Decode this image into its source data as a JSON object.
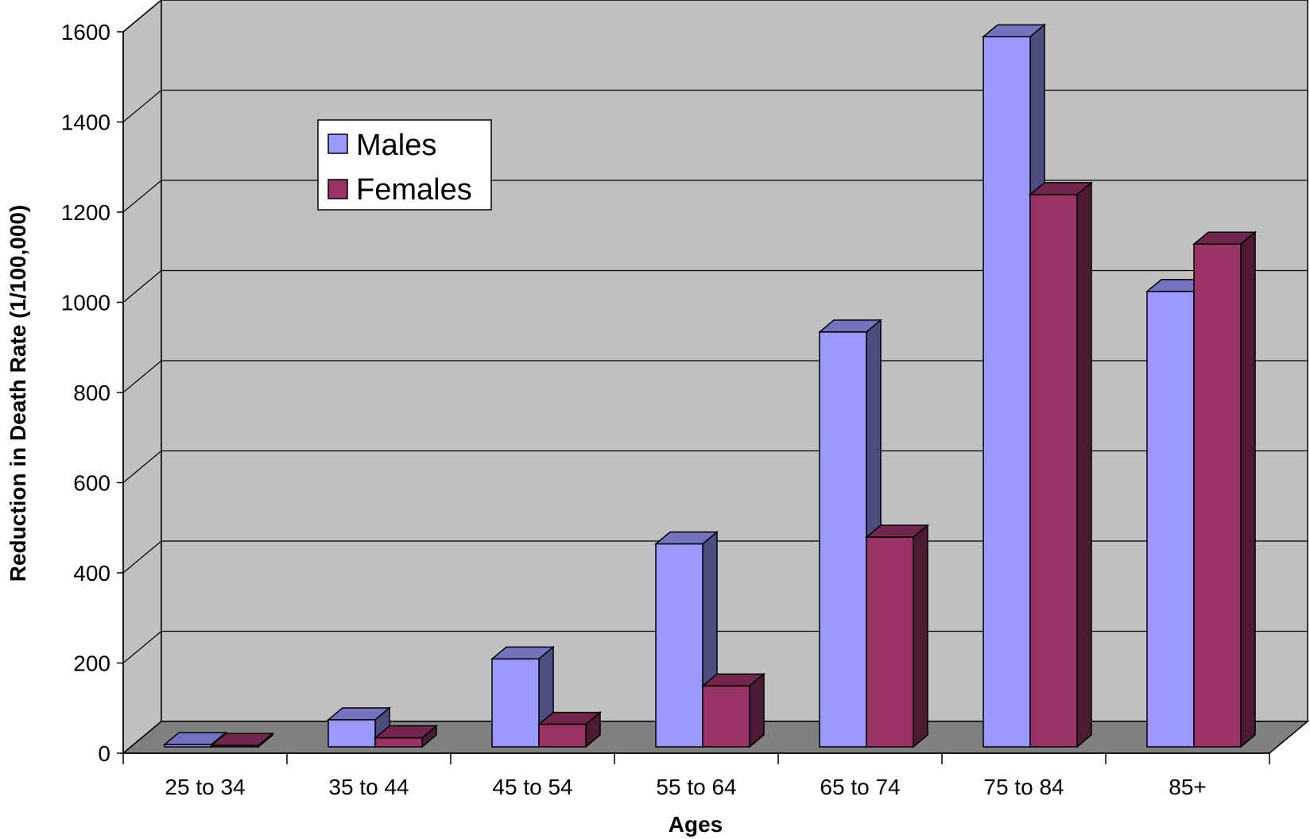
{
  "chart_data": {
    "type": "bar",
    "title": "",
    "xlabel": "Ages",
    "ylabel": "Reduction in Death Rate (1/100,000)",
    "categories": [
      "25 to 34",
      "35 to 44",
      "45 to 54",
      "55 to 64",
      "65 to 74",
      "75 to 84",
      "85+"
    ],
    "series": [
      {
        "name": "Males",
        "values": [
          5,
          60,
          195,
          450,
          920,
          1575,
          1010
        ],
        "color": "#9999ff"
      },
      {
        "name": "Females",
        "values": [
          3,
          20,
          50,
          135,
          465,
          1225,
          1115
        ],
        "color": "#993366"
      }
    ],
    "ylim": [
      0,
      1600
    ],
    "yticks": [
      0,
      200,
      400,
      600,
      800,
      1000,
      1200,
      1400,
      1600
    ],
    "grid": true,
    "legend_position": "top-left inside plot",
    "style": "3d-clustered-column",
    "wall_color": "#c0c0c0",
    "floor_color": "#808080"
  }
}
